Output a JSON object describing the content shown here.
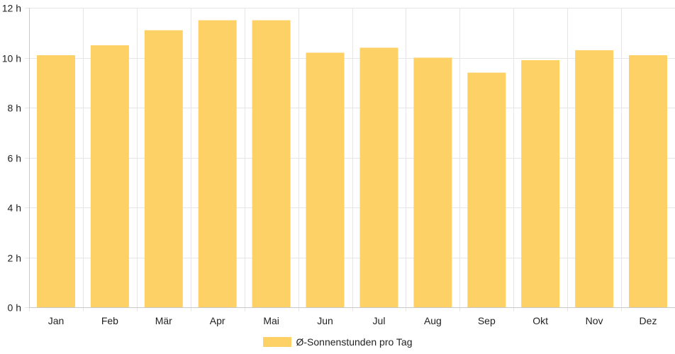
{
  "chart_data": {
    "type": "bar",
    "categories": [
      "Jan",
      "Feb",
      "Mär",
      "Apr",
      "Mai",
      "Jun",
      "Jul",
      "Aug",
      "Sep",
      "Okt",
      "Nov",
      "Dez"
    ],
    "series": [
      {
        "name": "Ø-Sonnenstunden pro Tag",
        "values": [
          10.1,
          10.5,
          11.1,
          11.5,
          11.5,
          10.2,
          10.4,
          10.0,
          9.4,
          9.9,
          10.3,
          10.1
        ]
      }
    ],
    "ylim": [
      0,
      12
    ],
    "yticks": [
      0,
      2,
      4,
      6,
      8,
      10,
      12
    ],
    "ytick_labels": [
      "0 h",
      "2 h",
      "4 h",
      "6 h",
      "8 h",
      "10 h",
      "12 h"
    ],
    "title": "",
    "xlabel": "",
    "ylabel": "",
    "grid": true,
    "legend_position": "bottom"
  },
  "colors": {
    "bar": "#fed166",
    "grid": "#e6e6e6",
    "axis": "#c8c8c8",
    "text": "#222222"
  }
}
